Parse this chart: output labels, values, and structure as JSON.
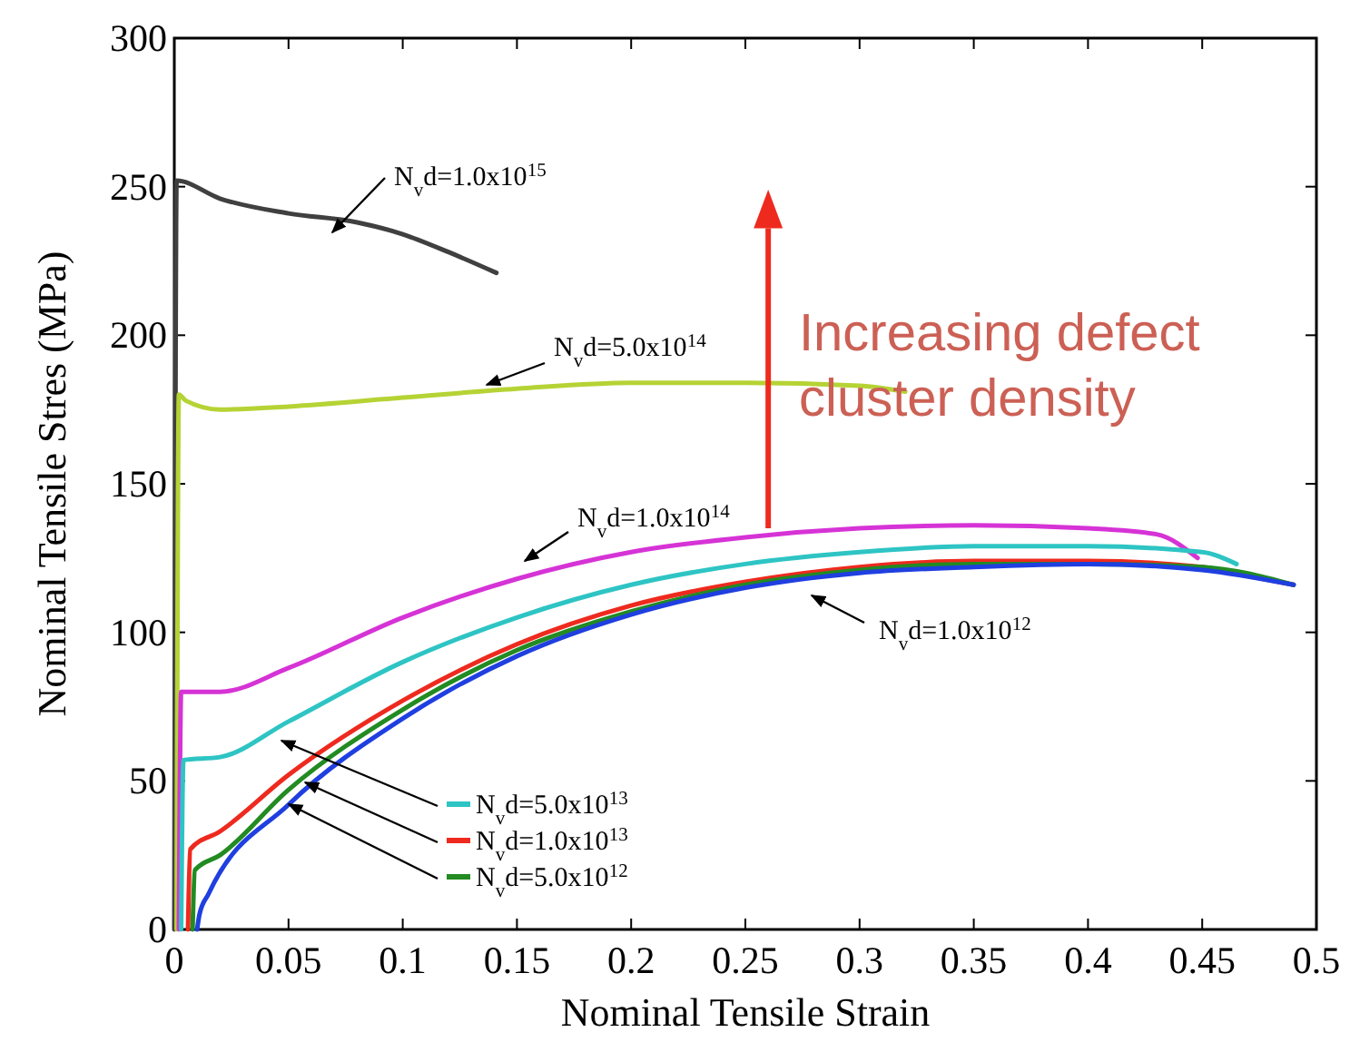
{
  "chart_data": {
    "type": "line",
    "xlabel": "Nominal Tensile Strain",
    "ylabel": "Nominal Tensile Stres (MPa)",
    "legend": "bottom",
    "xlim": [
      0,
      0.5
    ],
    "ylim": [
      0,
      300
    ],
    "xticks": [
      0,
      0.05,
      0.1,
      0.15,
      0.2,
      0.25,
      0.3,
      0.35,
      0.4,
      0.45,
      0.5
    ],
    "yticks": [
      0,
      50,
      100,
      150,
      200,
      250,
      300
    ],
    "annotations": [
      "Increasing defect cluster density"
    ],
    "series": [
      {
        "name": "N$_{v}$d=1.0x10$^{15}$",
        "color": "#404040",
        "x": [
          0,
          0.001,
          0.02,
          0.05,
          0.08,
          0.1,
          0.12,
          0.141
        ],
        "values": [
          0,
          252,
          246,
          241,
          238,
          234,
          228,
          221
        ]
      },
      {
        "name": "N$_{v}$d=5.0x10$^{14}$",
        "color": "#b5d334",
        "x": [
          0.001,
          0.002,
          0.005,
          0.02,
          0.05,
          0.1,
          0.15,
          0.2,
          0.25,
          0.3,
          0.32
        ],
        "values": [
          0,
          180,
          178,
          175,
          176,
          179,
          182,
          184,
          184,
          183,
          181
        ]
      },
      {
        "name": "N$_{v}$d=1.0x10$^{14}$",
        "color": "#d633d6",
        "x": [
          0.002,
          0.003,
          0.02,
          0.05,
          0.1,
          0.15,
          0.2,
          0.25,
          0.3,
          0.35,
          0.4,
          0.43,
          0.448
        ],
        "values": [
          0,
          80,
          80,
          88,
          105,
          118,
          127,
          132,
          135,
          136,
          135,
          133,
          125
        ]
      },
      {
        "name": "N$_{v}$d=5.0x10$^{13}$",
        "color": "#2ec4c4",
        "x": [
          0.003,
          0.004,
          0.02,
          0.05,
          0.1,
          0.15,
          0.2,
          0.25,
          0.3,
          0.35,
          0.4,
          0.45,
          0.465
        ],
        "values": [
          0,
          57,
          58,
          70,
          90,
          105,
          116,
          123,
          127,
          129,
          129,
          127,
          123
        ]
      },
      {
        "name": "N$_{v}$d=1.0x10$^{13}$",
        "color": "#ee2a1f",
        "x": [
          0.006,
          0.007,
          0.02,
          0.05,
          0.1,
          0.15,
          0.2,
          0.25,
          0.3,
          0.35,
          0.4,
          0.45,
          0.47,
          0.49
        ],
        "values": [
          0,
          27,
          33,
          52,
          77,
          96,
          109,
          117,
          122,
          124,
          124,
          122,
          119,
          116
        ]
      },
      {
        "name": "N$_{v}$d=5.0x10$^{12}$",
        "color": "#228b22",
        "x": [
          0.008,
          0.009,
          0.02,
          0.05,
          0.1,
          0.15,
          0.2,
          0.25,
          0.3,
          0.35,
          0.4,
          0.45,
          0.49
        ],
        "values": [
          0,
          20,
          25,
          47,
          74,
          94,
          107,
          116,
          121,
          123,
          123,
          122,
          116
        ]
      },
      {
        "name": "N$_{v}$d=1.0x10$^{12}$",
        "color": "#1f3fe0",
        "x": [
          0.01,
          0.011,
          0.015,
          0.05,
          0.1,
          0.15,
          0.2,
          0.25,
          0.3,
          0.35,
          0.4,
          0.45,
          0.49
        ],
        "values": [
          0,
          5,
          12,
          42,
          71,
          92,
          106,
          115,
          120,
          122,
          123,
          121,
          116
        ]
      }
    ]
  }
}
